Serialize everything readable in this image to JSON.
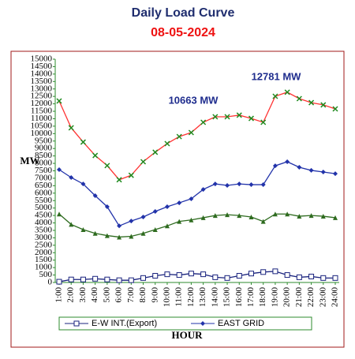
{
  "chart_data": {
    "type": "line",
    "title": "Daily Load Curve",
    "subtitle": "08-05-2024",
    "ylabel": "MW",
    "xlabel": "HOUR",
    "annotations": [
      "10663 MW",
      "12781 MW"
    ],
    "categories": [
      "1:00",
      "2:00",
      "3:00",
      "4:00",
      "5:00",
      "6:00",
      "7:00",
      "8:00",
      "9:00",
      "10:00",
      "11:00",
      "12:00",
      "13:00",
      "14:00",
      "15:00",
      "16:00",
      "17:00",
      "18:00",
      "19:00",
      "20:00",
      "21:00",
      "22:00",
      "23:00",
      "24:00"
    ],
    "ylim": [
      0,
      15000
    ],
    "yticks": [
      0,
      500,
      1000,
      1500,
      2000,
      2500,
      3000,
      3500,
      4000,
      4500,
      5000,
      5500,
      6000,
      6500,
      7000,
      7500,
      8000,
      8500,
      9000,
      9500,
      10000,
      10500,
      11000,
      11500,
      12000,
      12500,
      13000,
      13500,
      14000,
      14500,
      15000
    ],
    "grid": false,
    "legend": "bottom",
    "series": [
      {
        "name": "E-W INT.(Export)",
        "color": "#1a237e",
        "marker": "square",
        "values": [
          50,
          200,
          200,
          250,
          200,
          150,
          150,
          300,
          450,
          550,
          500,
          600,
          550,
          350,
          300,
          450,
          600,
          700,
          750,
          500,
          350,
          400,
          300,
          300
        ]
      },
      {
        "name": "EAST GRID",
        "color": "#2233aa",
        "marker": "diamond",
        "values": [
          7580,
          7050,
          6620,
          5830,
          5090,
          3800,
          4130,
          4400,
          4770,
          5090,
          5350,
          5620,
          6250,
          6620,
          6520,
          6620,
          6570,
          6570,
          7840,
          8110,
          7740,
          7530,
          7420,
          7310
        ]
      },
      {
        "color": "#2e6b1f",
        "marker": "triangle",
        "values": [
          4600,
          3900,
          3550,
          3300,
          3150,
          3050,
          3100,
          3300,
          3550,
          3800,
          4100,
          4200,
          4350,
          4500,
          4550,
          4500,
          4400,
          4100,
          4600,
          4600,
          4450,
          4500,
          4450,
          4350
        ]
      },
      {
        "color": "#ff3333",
        "marker": "x",
        "marker_color": "#1f8a1f",
        "values": [
          12190,
          10390,
          9430,
          8530,
          7850,
          6900,
          7200,
          8110,
          8750,
          9330,
          9800,
          10070,
          10760,
          11130,
          11130,
          11240,
          11020,
          10760,
          12510,
          12781,
          12350,
          12080,
          11930,
          11660
        ]
      }
    ]
  }
}
